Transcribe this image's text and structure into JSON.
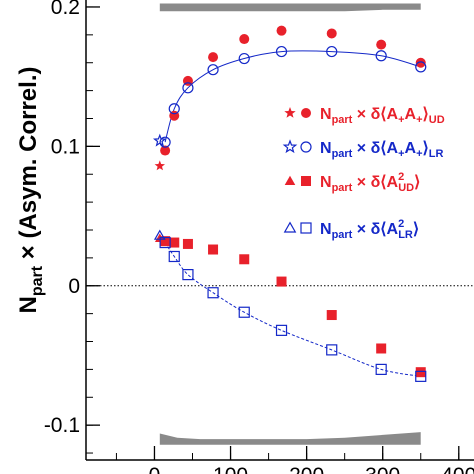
{
  "chart_data": {
    "type": "scatter",
    "title": "",
    "xlabel": "",
    "ylabel": {
      "main": "N",
      "sub": "part",
      "rest": " × (Asym. Correl.)"
    },
    "xlim": [
      -90,
      420
    ],
    "ylim": [
      -0.125,
      0.205
    ],
    "x_ticks": [
      0,
      100,
      200,
      300,
      400
    ],
    "x_tick_labels": [
      "0",
      "100",
      "200",
      "300",
      "400"
    ],
    "y_ticks": [
      -0.1,
      0,
      0.1,
      0.2
    ],
    "y_tick_labels": [
      "-0.1",
      "0",
      "0.1",
      "0.2"
    ],
    "zero_line": true,
    "grid": false,
    "legend_position": "right",
    "series": [
      {
        "legend": {
          "n": "N",
          "sub": "part",
          "op": " × δ⟨A",
          "s1": "+",
          "m": "A",
          "s2": "+",
          "close": "⟩",
          "tail": "UD"
        },
        "color": "#e8212b",
        "filled": true,
        "marker": "circle",
        "legend_extra_marker": "star",
        "x": [
          14,
          26,
          44,
          77,
          118,
          167,
          233,
          298,
          350
        ],
        "y": [
          0.097,
          0.122,
          0.147,
          0.164,
          0.177,
          0.183,
          0.181,
          0.173,
          0.16
        ],
        "extra_point": {
          "marker": "star",
          "x": 7,
          "y": 0.086
        }
      },
      {
        "legend": {
          "n": "N",
          "sub": "part",
          "op": " × δ⟨A",
          "s1": "+",
          "m": "A",
          "s2": "+",
          "close": "⟩",
          "tail": "LR"
        },
        "color": "#1428c8",
        "filled": false,
        "marker": "circle",
        "legend_extra_marker": "star",
        "x": [
          14,
          26,
          44,
          77,
          118,
          167,
          233,
          298,
          350
        ],
        "y": [
          0.103,
          0.127,
          0.142,
          0.155,
          0.163,
          0.168,
          0.168,
          0.165,
          0.157
        ],
        "extra_point": {
          "marker": "star",
          "x": 7,
          "y": 0.104
        },
        "fit_line": true
      },
      {
        "legend": {
          "n": "N",
          "sub": "part",
          "op": " × δ⟨A",
          "sup": "2",
          "sub2": "UD",
          "close": "⟩"
        },
        "color": "#e8212b",
        "filled": true,
        "marker": "square",
        "legend_extra_marker": "triangle",
        "x": [
          14,
          26,
          44,
          77,
          118,
          167,
          233,
          298,
          350
        ],
        "y": [
          0.032,
          0.031,
          0.03,
          0.026,
          0.019,
          0.003,
          -0.021,
          -0.045,
          -0.062
        ],
        "extra_point": {
          "marker": "triangle",
          "x": 7,
          "y": 0.034
        }
      },
      {
        "legend": {
          "n": "N",
          "sub": "part",
          "op": " × δ⟨A",
          "sup": "2",
          "sub2": "LR",
          "close": "⟩"
        },
        "color": "#1428c8",
        "filled": false,
        "marker": "square",
        "legend_extra_marker": "triangle",
        "x": [
          14,
          26,
          44,
          77,
          118,
          167,
          233,
          298,
          350
        ],
        "y": [
          0.031,
          0.021,
          0.008,
          -0.005,
          -0.019,
          -0.032,
          -0.046,
          -0.06,
          -0.065
        ],
        "extra_point": {
          "marker": "triangle",
          "x": 7,
          "y": 0.036
        },
        "fit_line": true,
        "fit_style": "dashed"
      }
    ],
    "systematic_bands": [
      {
        "x": [
          7,
          30,
          60,
          100,
          150,
          200,
          250,
          300,
          350
        ],
        "y_low": [
          0.197,
          0.197,
          0.197,
          0.197,
          0.197,
          0.197,
          0.197,
          0.198,
          0.198
        ],
        "y_high": [
          0.2025,
          0.2025,
          0.2025,
          0.2025,
          0.2025,
          0.2025,
          0.2025,
          0.2025,
          0.2025
        ]
      },
      {
        "x": [
          7,
          30,
          60,
          100,
          150,
          200,
          250,
          300,
          350
        ],
        "y_low": [
          -0.114,
          -0.114,
          -0.114,
          -0.114,
          -0.114,
          -0.114,
          -0.114,
          -0.114,
          -0.114
        ],
        "y_high": [
          -0.106,
          -0.109,
          -0.11,
          -0.11,
          -0.11,
          -0.11,
          -0.109,
          -0.107,
          -0.105
        ]
      }
    ]
  }
}
